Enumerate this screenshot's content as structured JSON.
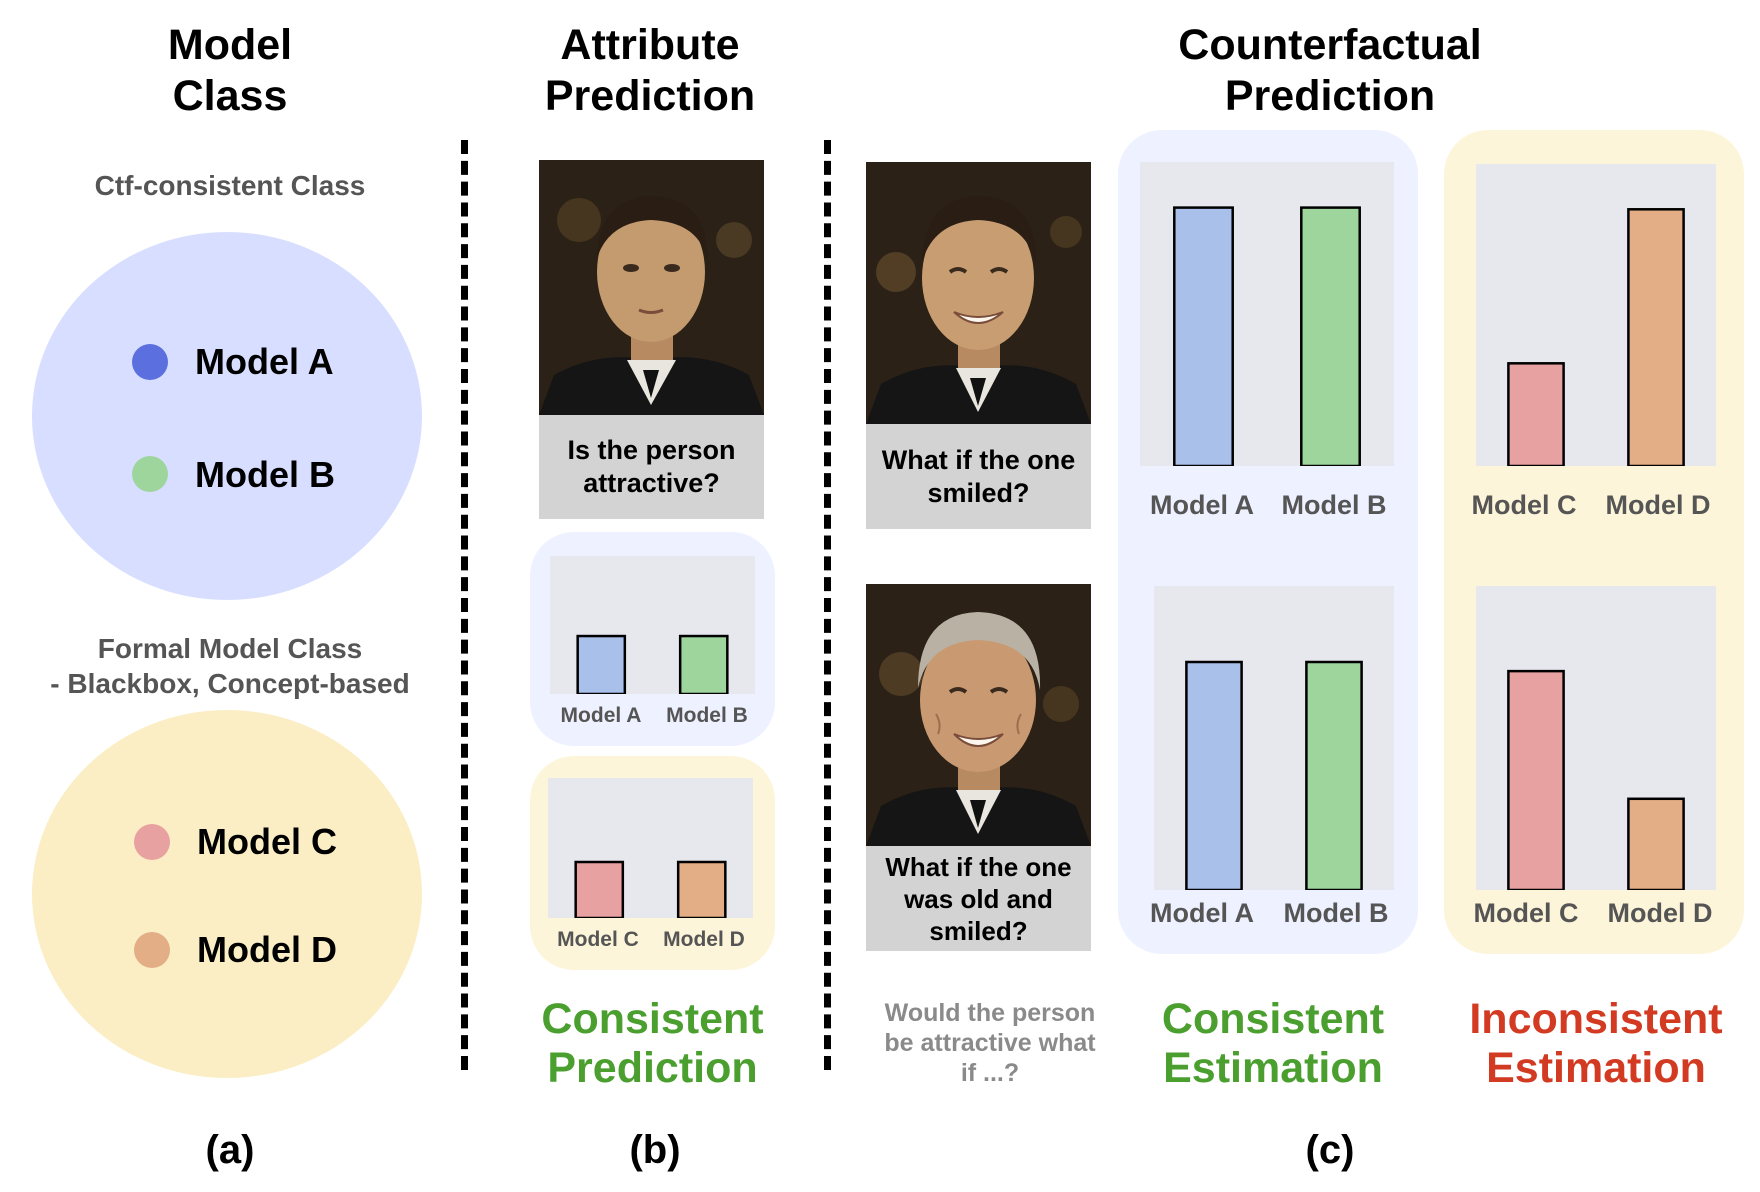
{
  "headers": {
    "model_class": "Model\nClass",
    "attribute_prediction": "Attribute\nPrediction",
    "counterfactual_prediction": "Counterfactual\nPrediction"
  },
  "colors": {
    "model_a": "#5b6fde",
    "model_b": "#9dd59d",
    "model_c": "#e8a1a1",
    "model_d": "#e3ad86",
    "consistent_circle": "#d8deff",
    "formal_circle": "#fbeec4",
    "consistent_panel": "#eef1ff",
    "formal_panel": "#fdf5d9",
    "bar_a": "#a8c0ea",
    "bar_b": "#9dd59d",
    "bar_c": "#e8a1a1",
    "bar_d": "#e3ad86",
    "green_text": "#4a9f2f",
    "red_text": "#d23a22"
  },
  "model_class": {
    "ctf_title": "Ctf-consistent Class",
    "formal_title": "Formal Model Class\n- Blackbox, Concept-based",
    "models": [
      {
        "label": "Model A",
        "color": "#5b6fde"
      },
      {
        "label": "Model B",
        "color": "#9dd59d"
      },
      {
        "label": "Model C",
        "color": "#e8a1a1"
      },
      {
        "label": "Model D",
        "color": "#e3ad86"
      }
    ]
  },
  "attribute": {
    "question": "Is the person\nattractive?",
    "verdict": "Consistent\nPrediction"
  },
  "counterfactual": {
    "question1": "What if the one\nsmiled?",
    "question2": "What if the one\nwas old and\nsmiled?",
    "note": "Would the person\nbe attractive what\nif ...?",
    "verdict_consistent": "Consistent\nEstimation",
    "verdict_inconsistent": "Inconsistent\nEstimation"
  },
  "chart_data": [
    {
      "type": "bar",
      "id": "attr_ab",
      "title": "",
      "categories": [
        "Model A",
        "Model B"
      ],
      "values": [
        0.42,
        0.42
      ],
      "ylim": [
        0,
        1
      ]
    },
    {
      "type": "bar",
      "id": "attr_cd",
      "title": "",
      "categories": [
        "Model C",
        "Model D"
      ],
      "values": [
        0.4,
        0.4
      ],
      "ylim": [
        0,
        1
      ]
    },
    {
      "type": "bar",
      "id": "ctf1_ab",
      "title": "",
      "categories": [
        "Model A",
        "Model B"
      ],
      "values": [
        0.85,
        0.85
      ],
      "ylim": [
        0,
        1
      ]
    },
    {
      "type": "bar",
      "id": "ctf1_cd",
      "title": "",
      "categories": [
        "Model C",
        "Model D"
      ],
      "values": [
        0.34,
        0.85
      ],
      "ylim": [
        0,
        1
      ]
    },
    {
      "type": "bar",
      "id": "ctf2_ab",
      "title": "",
      "categories": [
        "Model A",
        "Model B"
      ],
      "values": [
        0.75,
        0.75
      ],
      "ylim": [
        0,
        1
      ]
    },
    {
      "type": "bar",
      "id": "ctf2_cd",
      "title": "",
      "categories": [
        "Model C",
        "Model D"
      ],
      "values": [
        0.72,
        0.3
      ],
      "ylim": [
        0,
        1
      ]
    }
  ],
  "parts": [
    "(a)",
    "(b)",
    "(c)"
  ]
}
